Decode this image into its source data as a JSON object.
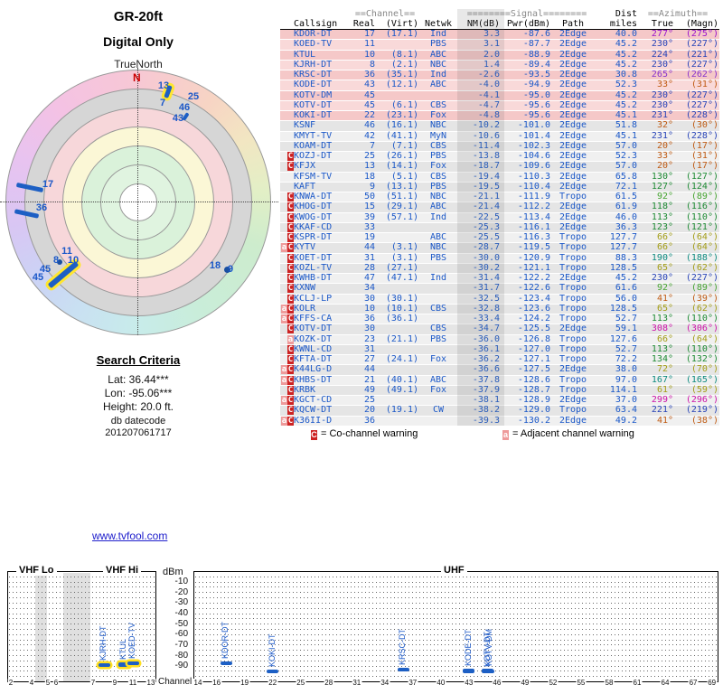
{
  "page": {
    "link_text": "www.tvfool.com",
    "search": {
      "title": "Search Criteria",
      "lat": "Lat: 36.44***",
      "lon": "Lon: -95.06***",
      "height": "Height: 20.0 ft."
    },
    "datecode_label": "db datecode",
    "datecode_value": "201207061717",
    "legend": {
      "co_symbol": "C",
      "co_text": "= Co-channel warning",
      "adj_symbol": "a",
      "adj_text": "= Adjacent channel warning"
    },
    "colors": {
      "accent_blue": "#1d5fc4",
      "warning_red": "#cc2222",
      "warning_pink": "#ee9a9a",
      "highlight_yellow": "#ffe62e",
      "strong_row_pink": "#f5c8c8",
      "weak_row_gray": "#e5e5e5"
    }
  },
  "chart_data": [
    {
      "type": "radar",
      "title": "GR-20ft",
      "subtitle": "Digital Only",
      "axis_label": "TrueNorth",
      "compass_label": "N",
      "channel_labels": [
        {
          "text": "13",
          "x": 181,
          "y": 95
        },
        {
          "text": "7",
          "x": 180,
          "y": 114
        },
        {
          "text": "25",
          "x": 214,
          "y": 107
        },
        {
          "text": "46",
          "x": 204,
          "y": 119
        },
        {
          "text": "43",
          "x": 197,
          "y": 131
        },
        {
          "text": "17",
          "x": 53,
          "y": 204
        },
        {
          "text": "36",
          "x": 46,
          "y": 230
        },
        {
          "text": "11",
          "x": 74,
          "y": 278
        },
        {
          "text": "10",
          "x": 81,
          "y": 288
        },
        {
          "text": "8",
          "x": 62,
          "y": 288
        },
        {
          "text": "45",
          "x": 50,
          "y": 298
        },
        {
          "text": "45",
          "x": 42,
          "y": 307
        },
        {
          "text": "18",
          "x": 238,
          "y": 294
        },
        {
          "text": "9",
          "x": 255,
          "y": 298
        }
      ],
      "bars": [
        {
          "azimuth_for": "17",
          "x": 33,
          "y": 207,
          "len": 30,
          "w": 5,
          "rot": 12,
          "highlighted": false
        },
        {
          "azimuth_for": "36",
          "x": 29,
          "y": 236,
          "len": 27,
          "w": 5,
          "rot": 12,
          "highlighted": false
        },
        {
          "azimuth_for": "230deg-cluster",
          "x": 70,
          "y": 304,
          "len": 40,
          "w": 6,
          "rot": -40,
          "highlighted": true
        },
        {
          "azimuth_for": "13",
          "x": 186,
          "y": 101,
          "len": 14,
          "w": 5,
          "rot": -70,
          "highlighted": true
        },
        {
          "azimuth_for": "43",
          "x": 205,
          "y": 129,
          "len": 9,
          "w": 4,
          "rot": -57,
          "highlighted": false
        }
      ],
      "dots": [
        {
          "x": 251,
          "y": 298,
          "r": 3.5
        },
        {
          "x": 66,
          "y": 290,
          "r": 3
        }
      ]
    },
    {
      "type": "table",
      "header_groups": {
        "channel": "==Channel==",
        "signal": "========Signal========",
        "dist": "Dist",
        "azimuth": "==Azimuth=="
      },
      "columns": [
        "Callsign",
        "Real",
        "(Virt)",
        "Netwk",
        "NM(dB)",
        "Pwr(dBm)",
        "Path",
        "miles",
        "True",
        "(Magn)"
      ],
      "rows": [
        {
          "marker": "",
          "callsign": "KDOR-DT",
          "real": "17",
          "virt": "(17.1)",
          "netwk": "Ind",
          "nm": "3.3",
          "pwr": "-87.6",
          "path": "2Edge",
          "dist": "40.0",
          "true": "277°",
          "magn": "(275°)",
          "az_color": "#9912cc"
        },
        {
          "marker": "",
          "callsign": "KOED-TV",
          "real": "11",
          "virt": "",
          "netwk": "PBS",
          "nm": "3.1",
          "pwr": "-87.7",
          "path": "2Edge",
          "dist": "45.2",
          "true": "230°",
          "magn": "(227°)",
          "az_color": "#2743b8"
        },
        {
          "marker": "",
          "callsign": "KTUL",
          "real": "10",
          "virt": "(8.1)",
          "netwk": "ABC",
          "nm": "2.0",
          "pwr": "-88.9",
          "path": "2Edge",
          "dist": "45.2",
          "true": "224°",
          "magn": "(221°)",
          "az_color": "#2743b8"
        },
        {
          "marker": "",
          "callsign": "KJRH-DT",
          "real": "8",
          "virt": "(2.1)",
          "netwk": "NBC",
          "nm": "1.4",
          "pwr": "-89.4",
          "path": "2Edge",
          "dist": "45.2",
          "true": "230°",
          "magn": "(227°)",
          "az_color": "#2743b8"
        },
        {
          "marker": "",
          "callsign": "KRSC-DT",
          "real": "36",
          "virt": "(35.1)",
          "netwk": "Ind",
          "nm": "-2.6",
          "pwr": "-93.5",
          "path": "2Edge",
          "dist": "30.8",
          "true": "265°",
          "magn": "(262°)",
          "az_color": "#8833cc"
        },
        {
          "marker": "",
          "callsign": "KODE-DT",
          "real": "43",
          "virt": "(12.1)",
          "netwk": "ABC",
          "nm": "-4.0",
          "pwr": "-94.9",
          "path": "2Edge",
          "dist": "52.3",
          "true": "33°",
          "magn": "(31°)",
          "az_color": "#bf5a12"
        },
        {
          "marker": "",
          "callsign": "KOTV-DM",
          "real": "45",
          "virt": "",
          "netwk": "",
          "nm": "-4.1",
          "pwr": "-95.0",
          "path": "2Edge",
          "dist": "45.2",
          "true": "230°",
          "magn": "(227°)",
          "az_color": "#2743b8"
        },
        {
          "marker": "",
          "callsign": "KOTV-DT",
          "real": "45",
          "virt": "(6.1)",
          "netwk": "CBS",
          "nm": "-4.7",
          "pwr": "-95.6",
          "path": "2Edge",
          "dist": "45.2",
          "true": "230°",
          "magn": "(227°)",
          "az_color": "#2743b8"
        },
        {
          "marker": "",
          "callsign": "KOKI-DT",
          "real": "22",
          "virt": "(23.1)",
          "netwk": "Fox",
          "nm": "-4.8",
          "pwr": "-95.6",
          "path": "2Edge",
          "dist": "45.1",
          "true": "231°",
          "magn": "(228°)",
          "az_color": "#2743b8"
        },
        {
          "marker": "",
          "callsign": "KSNF",
          "real": "46",
          "virt": "(16.1)",
          "netwk": "NBC",
          "nm": "-10.2",
          "pwr": "-101.0",
          "path": "2Edge",
          "dist": "51.8",
          "true": "32°",
          "magn": "(30°)",
          "az_color": "#bf5a12"
        },
        {
          "marker": "",
          "callsign": "KMYT-TV",
          "real": "42",
          "virt": "(41.1)",
          "netwk": "MyN",
          "nm": "-10.6",
          "pwr": "-101.4",
          "path": "2Edge",
          "dist": "45.1",
          "true": "231°",
          "magn": "(228°)",
          "az_color": "#2743b8"
        },
        {
          "marker": "",
          "callsign": "KOAM-DT",
          "real": "7",
          "virt": "(7.1)",
          "netwk": "CBS",
          "nm": "-11.4",
          "pwr": "-102.3",
          "path": "2Edge",
          "dist": "57.0",
          "true": "20°",
          "magn": "(17°)",
          "az_color": "#bf5a12"
        },
        {
          "marker": "C",
          "callsign": "KOZJ-DT",
          "real": "25",
          "virt": "(26.1)",
          "netwk": "PBS",
          "nm": "-13.8",
          "pwr": "-104.6",
          "path": "2Edge",
          "dist": "52.3",
          "true": "33°",
          "magn": "(31°)",
          "az_color": "#bf5a12"
        },
        {
          "marker": "C",
          "callsign": "KFJX",
          "real": "13",
          "virt": "(14.1)",
          "netwk": "Fox",
          "nm": "-18.7",
          "pwr": "-109.6",
          "path": "2Edge",
          "dist": "57.0",
          "true": "20°",
          "magn": "(17°)",
          "az_color": "#bf5a12"
        },
        {
          "marker": "",
          "callsign": "KFSM-TV",
          "real": "18",
          "virt": "(5.1)",
          "netwk": "CBS",
          "nm": "-19.4",
          "pwr": "-110.3",
          "path": "2Edge",
          "dist": "65.8",
          "true": "130°",
          "magn": "(127°)",
          "az_color": "#1d8a33"
        },
        {
          "marker": "",
          "callsign": "KAFT",
          "real": "9",
          "virt": "(13.1)",
          "netwk": "PBS",
          "nm": "-19.5",
          "pwr": "-110.4",
          "path": "2Edge",
          "dist": "72.1",
          "true": "127°",
          "magn": "(124°)",
          "az_color": "#1d8a33"
        },
        {
          "marker": "C",
          "callsign": "KNWA-DT",
          "real": "50",
          "virt": "(51.1)",
          "netwk": "NBC",
          "nm": "-21.1",
          "pwr": "-111.9",
          "path": "Tropo",
          "dist": "61.5",
          "true": "92°",
          "magn": "(89°)",
          "az_color": "#46a431"
        },
        {
          "marker": "C",
          "callsign": "KHOG-DT",
          "real": "15",
          "virt": "(29.1)",
          "netwk": "ABC",
          "nm": "-21.4",
          "pwr": "-112.2",
          "path": "2Edge",
          "dist": "61.9",
          "true": "118°",
          "magn": "(116°)",
          "az_color": "#1d8a33"
        },
        {
          "marker": "C",
          "callsign": "KWOG-DT",
          "real": "39",
          "virt": "(57.1)",
          "netwk": "Ind",
          "nm": "-22.5",
          "pwr": "-113.4",
          "path": "2Edge",
          "dist": "46.0",
          "true": "113°",
          "magn": "(110°)",
          "az_color": "#1d8a33"
        },
        {
          "marker": "C",
          "callsign": "KKAF-CD",
          "real": "33",
          "virt": "",
          "netwk": "",
          "nm": "-25.3",
          "pwr": "-116.1",
          "path": "2Edge",
          "dist": "36.3",
          "true": "123°",
          "magn": "(121°)",
          "az_color": "#1d8a33"
        },
        {
          "marker": "C",
          "callsign": "KSPR-DT",
          "real": "19",
          "virt": "",
          "netwk": "ABC",
          "nm": "-25.5",
          "pwr": "-116.3",
          "path": "Tropo",
          "dist": "127.7",
          "true": "66°",
          "magn": "(64°)",
          "az_color": "#a39d16"
        },
        {
          "marker": "aC",
          "callsign": "KYTV",
          "real": "44",
          "virt": "(3.1)",
          "netwk": "NBC",
          "nm": "-28.7",
          "pwr": "-119.5",
          "path": "Tropo",
          "dist": "127.7",
          "true": "66°",
          "magn": "(64°)",
          "az_color": "#a39d16"
        },
        {
          "marker": "C",
          "callsign": "KOET-DT",
          "real": "31",
          "virt": "(3.1)",
          "netwk": "PBS",
          "nm": "-30.0",
          "pwr": "-120.9",
          "path": "Tropo",
          "dist": "88.3",
          "true": "190°",
          "magn": "(188°)",
          "az_color": "#0d8b80"
        },
        {
          "marker": "C",
          "callsign": "KOZL-TV",
          "real": "28",
          "virt": "(27.1)",
          "netwk": "",
          "nm": "-30.2",
          "pwr": "-121.1",
          "path": "Tropo",
          "dist": "128.5",
          "true": "65°",
          "magn": "(62°)",
          "az_color": "#a39d16"
        },
        {
          "marker": "C",
          "callsign": "KWHB-DT",
          "real": "47",
          "virt": "(47.1)",
          "netwk": "Ind",
          "nm": "-31.4",
          "pwr": "-122.2",
          "path": "2Edge",
          "dist": "45.2",
          "true": "230°",
          "magn": "(227°)",
          "az_color": "#2743b8"
        },
        {
          "marker": "C",
          "callsign": "KXNW",
          "real": "34",
          "virt": "",
          "netwk": "",
          "nm": "-31.7",
          "pwr": "-122.6",
          "path": "Tropo",
          "dist": "61.6",
          "true": "92°",
          "magn": "(89°)",
          "az_color": "#46a431"
        },
        {
          "marker": "C",
          "callsign": "KCLJ-LP",
          "real": "30",
          "virt": "(30.1)",
          "netwk": "",
          "nm": "-32.5",
          "pwr": "-123.4",
          "path": "Tropo",
          "dist": "56.0",
          "true": "41°",
          "magn": "(39°)",
          "az_color": "#bf5a12"
        },
        {
          "marker": "aC",
          "callsign": "KOLR",
          "real": "10",
          "virt": "(10.1)",
          "netwk": "CBS",
          "nm": "-32.8",
          "pwr": "-123.6",
          "path": "Tropo",
          "dist": "128.5",
          "true": "65°",
          "magn": "(62°)",
          "az_color": "#a39d16"
        },
        {
          "marker": "aC",
          "callsign": "KFFS-CA",
          "real": "36",
          "virt": "(36.1)",
          "netwk": "",
          "nm": "-33.4",
          "pwr": "-124.2",
          "path": "Tropo",
          "dist": "52.7",
          "true": "113°",
          "magn": "(110°)",
          "az_color": "#1d8a33"
        },
        {
          "marker": "C",
          "callsign": "KOTV-DT",
          "real": "30",
          "virt": "",
          "netwk": "CBS",
          "nm": "-34.7",
          "pwr": "-125.5",
          "path": "2Edge",
          "dist": "59.1",
          "true": "308°",
          "magn": "(306°)",
          "az_color": "#cc12a8"
        },
        {
          "marker": "a",
          "callsign": "KOZK-DT",
          "real": "23",
          "virt": "(21.1)",
          "netwk": "PBS",
          "nm": "-36.0",
          "pwr": "-126.8",
          "path": "Tropo",
          "dist": "127.6",
          "true": "66°",
          "magn": "(64°)",
          "az_color": "#a39d16"
        },
        {
          "marker": "C",
          "callsign": "KWNL-CD",
          "real": "31",
          "virt": "",
          "netwk": "",
          "nm": "-36.1",
          "pwr": "-127.0",
          "path": "Tropo",
          "dist": "52.7",
          "true": "113°",
          "magn": "(110°)",
          "az_color": "#1d8a33"
        },
        {
          "marker": "C",
          "callsign": "KFTA-DT",
          "real": "27",
          "virt": "(24.1)",
          "netwk": "Fox",
          "nm": "-36.2",
          "pwr": "-127.1",
          "path": "Tropo",
          "dist": "72.2",
          "true": "134°",
          "magn": "(132°)",
          "az_color": "#1d8a33"
        },
        {
          "marker": "aC",
          "callsign": "K44LG-D",
          "real": "44",
          "virt": "",
          "netwk": "",
          "nm": "-36.6",
          "pwr": "-127.5",
          "path": "2Edge",
          "dist": "38.0",
          "true": "72°",
          "magn": "(70°)",
          "az_color": "#a39d16"
        },
        {
          "marker": "aC",
          "callsign": "KHBS-DT",
          "real": "21",
          "virt": "(40.1)",
          "netwk": "ABC",
          "nm": "-37.8",
          "pwr": "-128.6",
          "path": "Tropo",
          "dist": "97.0",
          "true": "167°",
          "magn": "(165°)",
          "az_color": "#0d8b80"
        },
        {
          "marker": "C",
          "callsign": "KRBK",
          "real": "49",
          "virt": "(49.1)",
          "netwk": "Fox",
          "nm": "-37.9",
          "pwr": "-128.7",
          "path": "Tropo",
          "dist": "114.1",
          "true": "61°",
          "magn": "(59°)",
          "az_color": "#a39d16"
        },
        {
          "marker": "aC",
          "callsign": "KGCT-CD",
          "real": "25",
          "virt": "",
          "netwk": "",
          "nm": "-38.1",
          "pwr": "-128.9",
          "path": "2Edge",
          "dist": "37.0",
          "true": "299°",
          "magn": "(296°)",
          "az_color": "#cc12a8"
        },
        {
          "marker": "C",
          "callsign": "KQCW-DT",
          "real": "20",
          "virt": "(19.1)",
          "netwk": "CW",
          "nm": "-38.2",
          "pwr": "-129.0",
          "path": "Tropo",
          "dist": "63.4",
          "true": "221°",
          "magn": "(219°)",
          "az_color": "#2743b8"
        },
        {
          "marker": "aC",
          "callsign": "K36II-D",
          "real": "36",
          "virt": "",
          "netwk": "",
          "nm": "-39.3",
          "pwr": "-130.2",
          "path": "2Edge",
          "dist": "49.2",
          "true": "41°",
          "magn": "(38°)",
          "az_color": "#bf5a12"
        }
      ]
    },
    {
      "type": "bar",
      "ylabel": "dBm",
      "xlabel": "Channel",
      "band_labels": {
        "vhf_lo": "VHF Lo",
        "vhf_hi": "VHF Hi",
        "uhf": "UHF"
      },
      "y_ticks": [
        "-10",
        "-20",
        "-30",
        "-40",
        "-50",
        "-60",
        "-70",
        "-80",
        "-90"
      ],
      "x_ticks_vhf": [
        "2",
        "4",
        "5",
        "6",
        "7",
        "9",
        "11",
        "13"
      ],
      "x_ticks_uhf": [
        "14",
        "16",
        "19",
        "22",
        "25",
        "28",
        "31",
        "34",
        "37",
        "40",
        "43",
        "46",
        "49",
        "52",
        "55",
        "58",
        "61",
        "64",
        "67",
        "69"
      ],
      "bars": [
        {
          "callsign": "KJRH-DT",
          "channel": 8,
          "dbm": -89.4,
          "band": "vhf",
          "highlighted": true
        },
        {
          "callsign": "KTUL",
          "channel": 10,
          "dbm": -88.9,
          "band": "vhf",
          "highlighted": true
        },
        {
          "callsign": "KOED-TV",
          "channel": 11,
          "dbm": -87.7,
          "band": "vhf",
          "highlighted": true
        },
        {
          "callsign": "KDOR-DT",
          "channel": 17,
          "dbm": -87.6,
          "band": "uhf",
          "highlighted": false
        },
        {
          "callsign": "KOKI-DT",
          "channel": 22,
          "dbm": -95.6,
          "band": "uhf",
          "highlighted": false
        },
        {
          "callsign": "KRSC-DT",
          "channel": 36,
          "dbm": -93.5,
          "band": "uhf",
          "highlighted": false
        },
        {
          "callsign": "KODE-DT",
          "channel": 43,
          "dbm": -94.9,
          "band": "uhf",
          "highlighted": false
        },
        {
          "callsign": "KOTV-DT",
          "channel": 45,
          "dbm": -95.6,
          "band": "uhf",
          "highlighted": false
        },
        {
          "callsign": "KOTV-DM",
          "channel": 45,
          "dbm": -95.0,
          "band": "uhf",
          "highlighted": false
        }
      ]
    }
  ]
}
